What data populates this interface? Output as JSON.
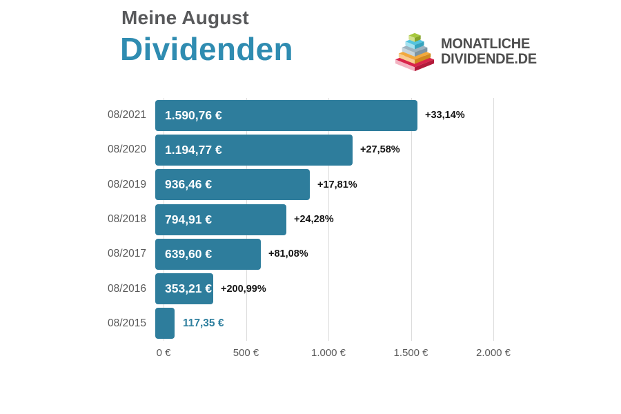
{
  "header": {
    "subtitle": "Meine August",
    "title": "Dividenden"
  },
  "logo": {
    "line1": "MONATLICHE",
    "line2": "DIVIDENDE.DE",
    "icon": "stacked-pyramid-icon",
    "layers": [
      {
        "name": "red-base",
        "top": "#d9244a",
        "left": "#f3b3c2",
        "right": "#b31b3b"
      },
      {
        "name": "orange",
        "top": "#f2a93c",
        "left": "#f8cd92",
        "right": "#cf8a1e"
      },
      {
        "name": "gray-blue",
        "top": "#9db3c0",
        "left": "#c6d4dc",
        "right": "#7e95a3"
      },
      {
        "name": "cyan",
        "top": "#54c4df",
        "left": "#a5e2f0",
        "right": "#36a3bd"
      },
      {
        "name": "green-top",
        "top": "#a6c83d",
        "left": "#d2e18c",
        "right": "#85a42a"
      }
    ]
  },
  "colors": {
    "title_gray": "#58595b",
    "accent_teal": "#2f8cb1",
    "bar": "#2e7d9c",
    "bar_value_text": "#ffffff",
    "outside_value_text": "#2e7f9e",
    "growth_text": "#141414",
    "axis_text": "#595959",
    "gridline": "#dcdcdc",
    "logo_text": "#4d4d4d"
  },
  "chart_data": {
    "type": "bar",
    "orientation": "horizontal",
    "title": "Meine August Dividenden",
    "categories": [
      "08/2021",
      "08/2020",
      "08/2019",
      "08/2018",
      "08/2017",
      "08/2016",
      "08/2015"
    ],
    "values": [
      1590.76,
      1194.77,
      936.46,
      794.91,
      639.6,
      353.21,
      117.35
    ],
    "value_labels": [
      "1.590,76 €",
      "1.194,77 €",
      "936,46 €",
      "794,91 €",
      "639,60 €",
      "353,21 €",
      "117,35 €"
    ],
    "growth_labels": [
      "+33,14%",
      "+27,58%",
      "+17,81%",
      "+24,28%",
      "+81,08%",
      "+200,99%",
      ""
    ],
    "label_inside": [
      true,
      true,
      true,
      true,
      true,
      true,
      false
    ],
    "xlabel": "",
    "ylabel": "",
    "xlim": [
      0,
      2000
    ],
    "x_tick_values": [
      0,
      500,
      1000,
      1500,
      2000
    ],
    "x_tick_labels": [
      "0 €",
      "500 €",
      "1.000 €",
      "1.500 €",
      "2.000 €"
    ],
    "gridlines": true,
    "legend": false,
    "bar_color": "#2e7d9c"
  }
}
